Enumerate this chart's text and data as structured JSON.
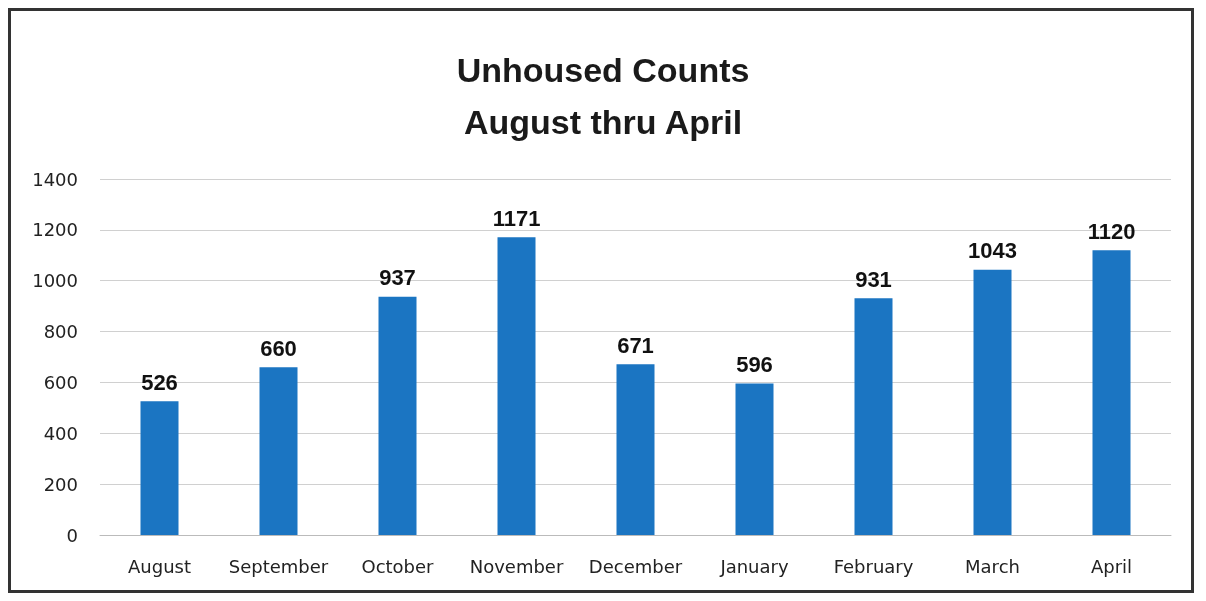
{
  "chart_data": {
    "type": "bar",
    "title": "Unhoused Counts",
    "subtitle": "August thru April",
    "categories": [
      "August",
      "September",
      "October",
      "November",
      "December",
      "January",
      "February",
      "March",
      "April"
    ],
    "values": [
      526,
      660,
      937,
      1171,
      671,
      596,
      931,
      1043,
      1120
    ],
    "color": "#1b75c2",
    "ylim": [
      0,
      1400
    ],
    "yticks": [
      0,
      200,
      400,
      600,
      800,
      1000,
      1200,
      1400
    ],
    "grid": "y",
    "data_labels": true
  }
}
